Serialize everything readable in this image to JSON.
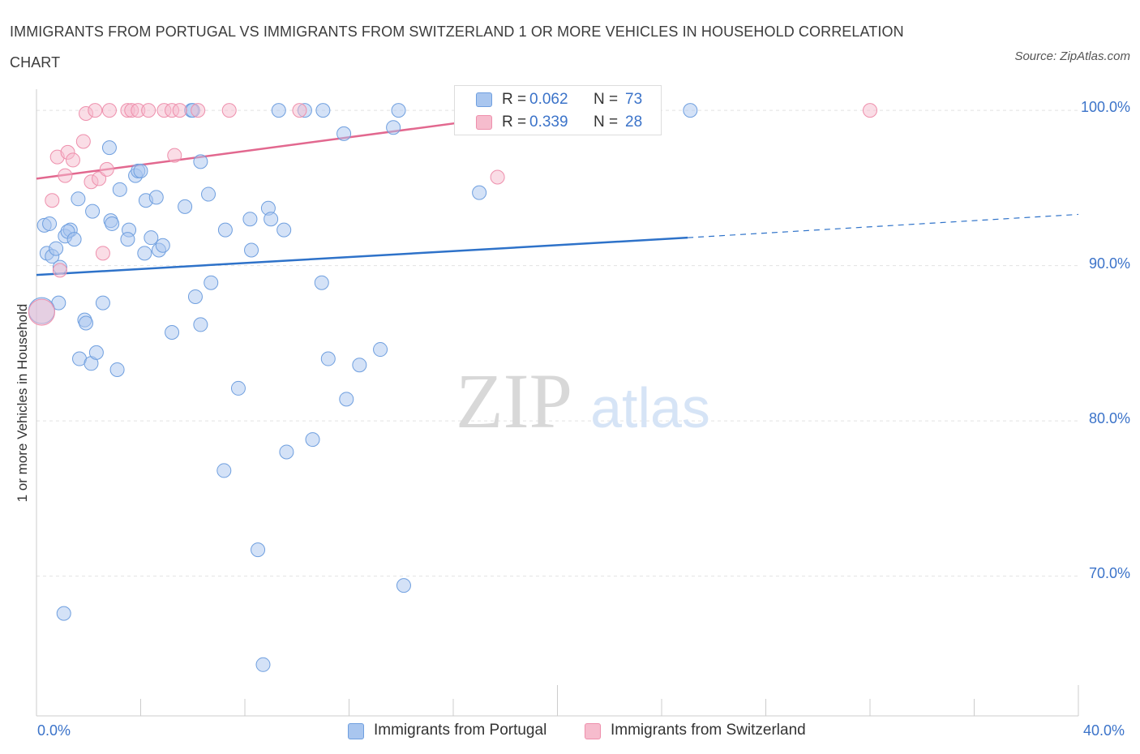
{
  "title": "IMMIGRANTS FROM PORTUGAL VS IMMIGRANTS FROM SWITZERLAND 1 OR MORE VEHICLES IN HOUSEHOLD CORRELATION CHART",
  "source": "Source: ZipAtlas.com",
  "watermark": {
    "zip": "ZIP",
    "atlas": "atlas"
  },
  "legend": {
    "r_label": "R =",
    "n_label": "N =",
    "entries": [
      {
        "r": "0.062",
        "n": "73"
      },
      {
        "r": "0.339",
        "n": "28"
      }
    ]
  },
  "colors": {
    "blue_fill": "#a9c6ef",
    "blue_stroke": "#6f9fdf",
    "blue_line": "#2e72c9",
    "pink_fill": "#f6bccd",
    "pink_stroke": "#ee8fac",
    "pink_line": "#e2688f",
    "axis_label": "#3b73c9"
  },
  "chart_data": {
    "type": "scatter",
    "title": "IMMIGRANTS FROM PORTUGAL VS IMMIGRANTS FROM SWITZERLAND 1 OR MORE VEHICLES IN HOUSEHOLD CORRELATION CHART",
    "ylabel": "1 or more Vehicles in Household",
    "xlabel": "",
    "xlim": [
      0,
      40
    ],
    "ylim": [
      61,
      101
    ],
    "x_tick_labels": [
      "0.0%",
      "40.0%"
    ],
    "y_tick_labels": [
      "100.0%",
      "90.0%",
      "80.0%",
      "70.0%"
    ],
    "y_ticks": [
      100,
      90,
      80,
      70
    ],
    "grid": true,
    "legend_position": "bottom",
    "series": [
      {
        "name": "Immigrants from Portugal",
        "color": "#a9c6ef",
        "trend": {
          "x": [
            0,
            25
          ],
          "y": [
            89.4,
            91.8
          ],
          "dashed_to": [
            40,
            93.3
          ]
        },
        "points": [
          [
            0.3,
            92.6
          ],
          [
            0.5,
            92.7
          ],
          [
            0.4,
            90.8
          ],
          [
            0.6,
            90.6
          ],
          [
            0.75,
            91.1
          ],
          [
            0.9,
            89.9
          ],
          [
            0.85,
            87.6
          ],
          [
            1.1,
            91.9
          ],
          [
            1.3,
            92.3
          ],
          [
            1.2,
            92.2
          ],
          [
            1.45,
            91.7
          ],
          [
            1.6,
            94.3
          ],
          [
            1.65,
            84.0
          ],
          [
            1.85,
            86.5
          ],
          [
            1.9,
            86.3
          ],
          [
            2.1,
            83.7
          ],
          [
            2.15,
            93.5
          ],
          [
            2.3,
            84.4
          ],
          [
            2.55,
            87.6
          ],
          [
            2.8,
            97.6
          ],
          [
            2.85,
            92.9
          ],
          [
            2.9,
            92.7
          ],
          [
            3.1,
            83.3
          ],
          [
            3.2,
            94.9
          ],
          [
            3.55,
            92.3
          ],
          [
            3.5,
            91.7
          ],
          [
            3.8,
            95.8
          ],
          [
            3.9,
            96.1
          ],
          [
            4.0,
            96.1
          ],
          [
            4.15,
            90.8
          ],
          [
            4.2,
            94.2
          ],
          [
            4.4,
            91.8
          ],
          [
            4.6,
            94.4
          ],
          [
            4.7,
            91.0
          ],
          [
            4.85,
            91.3
          ],
          [
            5.2,
            85.7
          ],
          [
            5.7,
            93.8
          ],
          [
            6.1,
            88.0
          ],
          [
            6.3,
            96.7
          ],
          [
            6.3,
            86.2
          ],
          [
            6.6,
            94.6
          ],
          [
            6.7,
            88.9
          ],
          [
            7.2,
            76.8
          ],
          [
            7.25,
            92.3
          ],
          [
            7.75,
            82.1
          ],
          [
            8.2,
            93.0
          ],
          [
            8.25,
            91.0
          ],
          [
            8.5,
            71.7
          ],
          [
            8.7,
            64.3
          ],
          [
            8.9,
            93.7
          ],
          [
            9.0,
            93.0
          ],
          [
            9.3,
            100.0
          ],
          [
            9.5,
            92.3
          ],
          [
            9.6,
            78.0
          ],
          [
            10.3,
            100.0
          ],
          [
            10.6,
            78.8
          ],
          [
            10.95,
            88.9
          ],
          [
            11.0,
            100.0
          ],
          [
            11.2,
            84.0
          ],
          [
            11.8,
            98.5
          ],
          [
            11.9,
            81.4
          ],
          [
            12.4,
            83.6
          ],
          [
            13.2,
            84.6
          ],
          [
            13.7,
            98.9
          ],
          [
            13.9,
            100.0
          ],
          [
            14.1,
            69.4
          ],
          [
            5.95,
            100.0
          ],
          [
            1.05,
            67.6
          ],
          [
            16.7,
            100.0
          ],
          [
            17.0,
            94.7
          ],
          [
            25.1,
            100.0
          ],
          [
            6.0,
            100.0
          ],
          [
            0.2,
            87.1
          ]
        ]
      },
      {
        "name": "Immigrants from Switzerland",
        "color": "#f6bccd",
        "trend": {
          "x": [
            0,
            18
          ],
          "y": [
            95.6,
            99.6
          ]
        },
        "points": [
          [
            0.6,
            94.2
          ],
          [
            0.9,
            89.7
          ],
          [
            0.8,
            97.0
          ],
          [
            1.1,
            95.8
          ],
          [
            1.2,
            97.3
          ],
          [
            1.4,
            96.8
          ],
          [
            1.8,
            98.0
          ],
          [
            1.9,
            99.8
          ],
          [
            2.1,
            95.4
          ],
          [
            2.25,
            100.0
          ],
          [
            2.4,
            95.6
          ],
          [
            2.55,
            90.8
          ],
          [
            2.7,
            96.2
          ],
          [
            2.8,
            100.0
          ],
          [
            3.5,
            100.0
          ],
          [
            3.65,
            100.0
          ],
          [
            3.9,
            100.0
          ],
          [
            4.3,
            100.0
          ],
          [
            4.9,
            100.0
          ],
          [
            5.2,
            100.0
          ],
          [
            5.3,
            97.1
          ],
          [
            5.5,
            100.0
          ],
          [
            6.2,
            100.0
          ],
          [
            7.4,
            100.0
          ],
          [
            10.1,
            100.0
          ],
          [
            17.7,
            95.7
          ],
          [
            32.0,
            100.0
          ],
          [
            0.2,
            87.0
          ]
        ]
      }
    ]
  }
}
